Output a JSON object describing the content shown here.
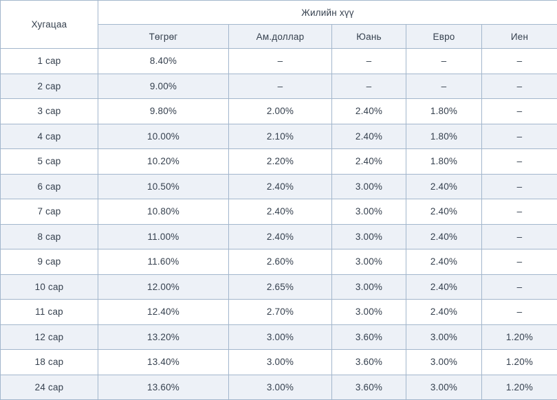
{
  "chart_data": {
    "type": "table",
    "duration_header": "Хугацаа",
    "group_header": "Жилийн хүү",
    "currency_headers": [
      "Төгрөг",
      "Ам.доллар",
      "Юань",
      "Евро",
      "Иен"
    ],
    "rows": [
      {
        "duration": "1 сар",
        "values": [
          "8.40%",
          "–",
          "–",
          "–",
          "–"
        ]
      },
      {
        "duration": "2 сар",
        "values": [
          "9.00%",
          "–",
          "–",
          "–",
          "–"
        ]
      },
      {
        "duration": "3 сар",
        "values": [
          "9.80%",
          "2.00%",
          "2.40%",
          "1.80%",
          "–"
        ]
      },
      {
        "duration": "4 сар",
        "values": [
          "10.00%",
          "2.10%",
          "2.40%",
          "1.80%",
          "–"
        ]
      },
      {
        "duration": "5 сар",
        "values": [
          "10.20%",
          "2.20%",
          "2.40%",
          "1.80%",
          "–"
        ]
      },
      {
        "duration": "6 сар",
        "values": [
          "10.50%",
          "2.40%",
          "3.00%",
          "2.40%",
          "–"
        ]
      },
      {
        "duration": "7 сар",
        "values": [
          "10.80%",
          "2.40%",
          "3.00%",
          "2.40%",
          "–"
        ]
      },
      {
        "duration": "8 сар",
        "values": [
          "11.00%",
          "2.40%",
          "3.00%",
          "2.40%",
          "–"
        ]
      },
      {
        "duration": "9 сар",
        "values": [
          "11.60%",
          "2.60%",
          "3.00%",
          "2.40%",
          "–"
        ]
      },
      {
        "duration": "10 сар",
        "values": [
          "12.00%",
          "2.65%",
          "3.00%",
          "2.40%",
          "–"
        ]
      },
      {
        "duration": "11 сар",
        "values": [
          "12.40%",
          "2.70%",
          "3.00%",
          "2.40%",
          "–"
        ]
      },
      {
        "duration": "12 сар",
        "values": [
          "13.20%",
          "3.00%",
          "3.60%",
          "3.00%",
          "1.20%"
        ]
      },
      {
        "duration": "18 сар",
        "values": [
          "13.40%",
          "3.00%",
          "3.60%",
          "3.00%",
          "1.20%"
        ]
      },
      {
        "duration": "24 сар",
        "values": [
          "13.60%",
          "3.00%",
          "3.60%",
          "3.00%",
          "1.20%"
        ]
      }
    ]
  },
  "colors": {
    "border": "#a2b6cc",
    "stripe_background": "#edf1f7",
    "text": "#35404e",
    "header_background": "#ffffff"
  }
}
